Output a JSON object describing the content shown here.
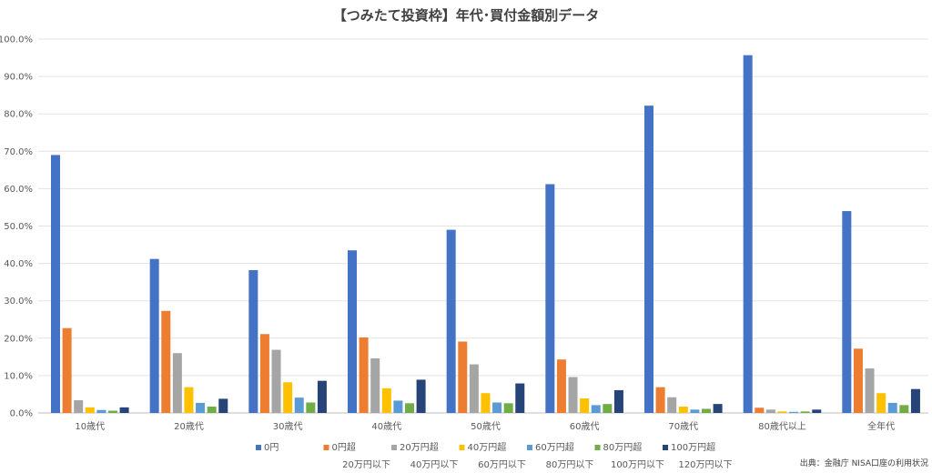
{
  "chart_data": {
    "type": "bar",
    "title": "【つみたて投資枠】年代･買付金額別データ",
    "categories": [
      "10歳代",
      "20歳代",
      "30歳代",
      "40歳代",
      "50歳代",
      "60歳代",
      "70歳代",
      "80歳代以上",
      "全年代"
    ],
    "ylim": [
      0,
      100
    ],
    "y_ticks": [
      "0.0%",
      "10.0%",
      "20.0%",
      "30.0%",
      "40.0%",
      "50.0%",
      "60.0%",
      "70.0%",
      "80.0%",
      "90.0%",
      "100.0%"
    ],
    "grid": true,
    "legend_position": "bottom",
    "series": [
      {
        "name": "0円",
        "sub": "",
        "color": "#4472C4",
        "values": [
          69.0,
          41.2,
          38.2,
          43.5,
          49.0,
          61.2,
          82.2,
          95.7,
          54.0
        ]
      },
      {
        "name": "0円超",
        "sub": "20万円以下",
        "color": "#ED7D31",
        "values": [
          22.7,
          27.3,
          21.1,
          20.2,
          19.1,
          14.3,
          6.9,
          1.4,
          17.2
        ]
      },
      {
        "name": "20万円超",
        "sub": "40万円以下",
        "color": "#A5A5A5",
        "values": [
          3.4,
          16.0,
          16.9,
          14.6,
          13.0,
          9.6,
          4.2,
          0.9,
          11.9
        ]
      },
      {
        "name": "40万円超",
        "sub": "60万円以下",
        "color": "#FFC000",
        "values": [
          1.5,
          6.9,
          8.2,
          6.6,
          5.3,
          3.9,
          1.7,
          0.4,
          5.3
        ]
      },
      {
        "name": "60万円超",
        "sub": "80万円以下",
        "color": "#5B9BD5",
        "values": [
          0.8,
          2.7,
          4.1,
          3.3,
          2.8,
          2.1,
          0.9,
          0.3,
          2.7
        ]
      },
      {
        "name": "80万円超",
        "sub": "100万円以下",
        "color": "#70AD47",
        "values": [
          0.6,
          1.7,
          2.8,
          2.6,
          2.6,
          2.4,
          1.1,
          0.4,
          2.1
        ]
      },
      {
        "name": "100万円超",
        "sub": "120万円以下",
        "color": "#264478",
        "values": [
          1.5,
          3.8,
          8.6,
          8.9,
          7.9,
          6.1,
          2.4,
          0.9,
          6.4
        ]
      }
    ]
  },
  "source": "出典：金融庁 NISA口座の利用状況"
}
